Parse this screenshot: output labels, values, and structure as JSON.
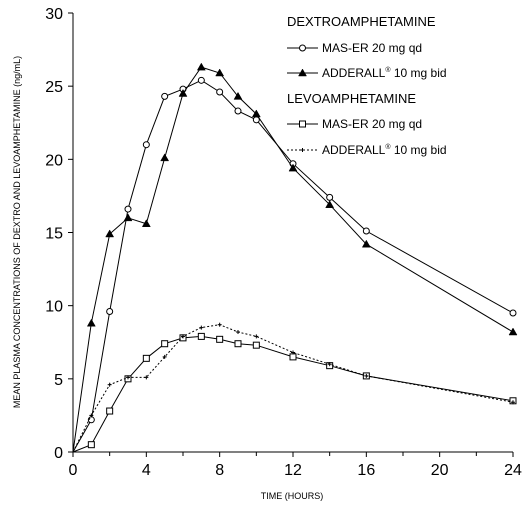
{
  "chart_data": {
    "type": "line",
    "xlabel": "TIME (HOURS)",
    "ylabel": "MEAN PLASMA CONCENTRATIONS OF DEXTRO AND LEVOAMPHETAMINE (ng/mL)",
    "xlim": [
      0,
      24
    ],
    "ylim": [
      0,
      30
    ],
    "x_ticks": [
      "0",
      "4",
      "8",
      "12",
      "16",
      "20",
      "24"
    ],
    "y_ticks": [
      "0",
      "5",
      "10",
      "15",
      "20",
      "25",
      "30"
    ],
    "grid": false,
    "legend_placement": "top-right",
    "legend_groups": [
      {
        "heading": "DEXTROAMPHETAMINE",
        "series_indices": [
          0,
          1
        ]
      },
      {
        "heading": "LEVOAMPHETAMINE",
        "series_indices": [
          2,
          3
        ]
      }
    ],
    "series": [
      {
        "name": "MAS-ER 20 mg qd",
        "legend_text": "MAS-ER 20 mg qd",
        "legend_sup": "",
        "legend_suffix": "",
        "marker": "circle",
        "line_style": "solid",
        "x": [
          0,
          1,
          2,
          3,
          4,
          5,
          6,
          7,
          8,
          9,
          10,
          12,
          14,
          16,
          24
        ],
        "y": [
          0,
          2.2,
          9.6,
          16.6,
          21.0,
          24.3,
          24.8,
          25.4,
          24.6,
          23.3,
          22.7,
          19.7,
          17.4,
          15.1,
          9.5
        ]
      },
      {
        "name": "ADDERALL 10 mg bid",
        "legend_text": "ADDERALL",
        "legend_sup": "®",
        "legend_suffix": " 10 mg bid",
        "marker": "triangle",
        "line_style": "solid",
        "x": [
          0,
          1,
          2,
          3,
          4,
          5,
          6,
          7,
          8,
          9,
          10,
          12,
          14,
          16,
          24
        ],
        "y": [
          0,
          8.8,
          14.9,
          16.0,
          15.6,
          20.1,
          24.5,
          26.3,
          25.9,
          24.3,
          23.1,
          19.4,
          16.9,
          14.2,
          8.2
        ]
      },
      {
        "name": "MAS-ER 20 mg qd",
        "legend_text": "MAS-ER 20 mg qd",
        "legend_sup": "",
        "legend_suffix": "",
        "marker": "square",
        "line_style": "solid",
        "x": [
          0,
          1,
          2,
          3,
          4,
          5,
          6,
          7,
          8,
          9,
          10,
          12,
          14,
          16,
          24
        ],
        "y": [
          0,
          0.5,
          2.8,
          5.0,
          6.4,
          7.4,
          7.8,
          7.9,
          7.7,
          7.4,
          7.3,
          6.5,
          5.9,
          5.2,
          3.5
        ]
      },
      {
        "name": "ADDERALL 10 mg bid",
        "legend_text": "ADDERALL",
        "legend_sup": "®",
        "legend_suffix": " 10 mg bid",
        "marker": "plus",
        "line_style": "dotted",
        "x": [
          0,
          1,
          2,
          3,
          4,
          5,
          6,
          7,
          8,
          9,
          10,
          12,
          14,
          16,
          24
        ],
        "y": [
          0,
          2.5,
          4.6,
          5.1,
          5.1,
          6.5,
          7.9,
          8.5,
          8.7,
          8.2,
          7.9,
          6.8,
          6.0,
          5.2,
          3.4
        ]
      }
    ]
  }
}
